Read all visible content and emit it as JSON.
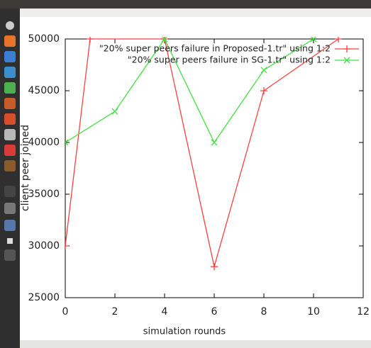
{
  "chart_data": {
    "type": "line",
    "x_label": "simulation rounds",
    "y_label": "client peer joined",
    "xlim": [
      0,
      12
    ],
    "xticks": [
      0,
      2,
      4,
      6,
      8,
      10,
      12
    ],
    "ylim": [
      25000,
      50000
    ],
    "yticks": [
      25000,
      30000,
      35000,
      40000,
      45000,
      50000
    ],
    "legend": "top right",
    "series": [
      {
        "name": "\"20% super peers failure in Proposed-1.tr\" using 1:2",
        "color": "#ff4040",
        "marker": "+",
        "x": [
          0,
          1,
          4,
          6,
          8,
          11
        ],
        "values": [
          30000,
          50000,
          50000,
          28000,
          45000,
          50000
        ]
      },
      {
        "name": "\"20% super peers failure in SG-1.tr\" using 1:2",
        "color": "#40e040",
        "marker": "x",
        "x": [
          0,
          2,
          4,
          6,
          8,
          10
        ],
        "values": [
          40000,
          43000,
          50000,
          40000,
          47000,
          50000
        ]
      }
    ]
  }
}
